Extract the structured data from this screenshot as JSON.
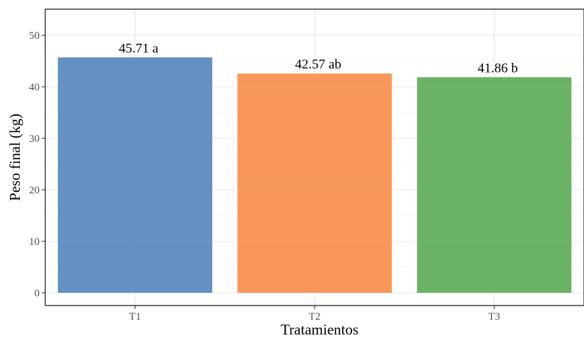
{
  "chart_data": {
    "type": "bar",
    "xlabel": "Tratamientos",
    "ylabel": "Peso final (kg)",
    "categories": [
      "T1",
      "T2",
      "T3"
    ],
    "values": [
      45.71,
      42.57,
      41.86
    ],
    "value_labels": [
      "45.71",
      "42.57",
      "41.86"
    ],
    "group_letters": [
      "a",
      "ab",
      "b"
    ],
    "ylim": [
      0,
      55
    ],
    "yticks": [
      0,
      10,
      20,
      30,
      40,
      50
    ],
    "ytick_labels": [
      "0",
      "10",
      "20",
      "30",
      "40",
      "50"
    ],
    "grid": true,
    "legend": "none",
    "colors": [
      "#5b8bc0",
      "#f99150",
      "#62ae5c"
    ]
  }
}
